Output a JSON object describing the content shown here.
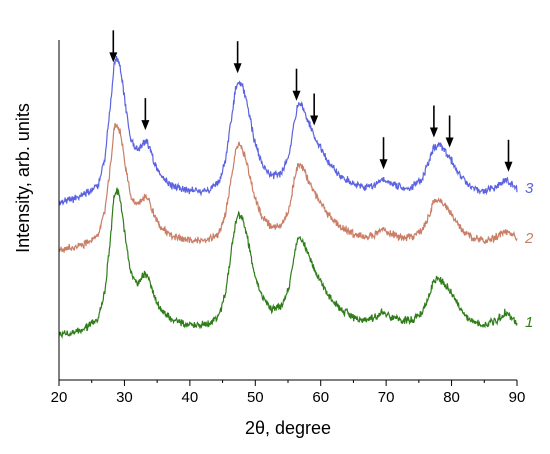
{
  "chart_data": {
    "type": "line",
    "title": "",
    "xlabel": "2θ, degree",
    "ylabel": "Intensity, arb. units",
    "xlim": [
      20,
      90
    ],
    "x_ticks": [
      20,
      30,
      40,
      50,
      60,
      70,
      80,
      90
    ],
    "y_ticks_shown": false,
    "grid": false,
    "legend": "none",
    "series": [
      {
        "name": "1",
        "color": "#2e7d18",
        "x": [
          20,
          22,
          24,
          26,
          27,
          28,
          28.4,
          28.8,
          29.4,
          30.2,
          31,
          32,
          32.6,
          33.2,
          33.8,
          34.6,
          35.6,
          37,
          39,
          41,
          43,
          44.5,
          45.5,
          46.3,
          47,
          47.4,
          48,
          48.8,
          49.8,
          51,
          52.5,
          54,
          55.2,
          56,
          56.5,
          57.2,
          58,
          59.2,
          61,
          63,
          65,
          67,
          68.5,
          69.5,
          70.5,
          72,
          74,
          75.5,
          76.5,
          77.2,
          78,
          79,
          80,
          81.5,
          83,
          85,
          87,
          88.2,
          89,
          90
        ],
        "y": [
          8,
          9,
          12,
          18,
          35,
          75,
          96,
          100,
          94,
          68,
          46,
          40,
          44,
          47,
          43,
          32,
          24,
          18,
          15,
          14,
          15,
          20,
          35,
          60,
          80,
          85,
          82,
          70,
          48,
          32,
          24,
          26,
          38,
          60,
          70,
          68,
          60,
          48,
          34,
          24,
          19,
          17,
          19,
          22,
          20,
          17,
          17,
          22,
          32,
          42,
          44,
          40,
          34,
          23,
          17,
          14,
          17,
          22,
          19,
          16
        ]
      },
      {
        "name": "2",
        "color": "#c97e66",
        "x": [
          20,
          22,
          24,
          26,
          27,
          28,
          28.4,
          28.8,
          29.4,
          30.2,
          31,
          32,
          32.6,
          33.2,
          33.8,
          34.6,
          35.6,
          37,
          39,
          41,
          43,
          44.5,
          45.5,
          46.3,
          47,
          47.4,
          48,
          48.8,
          49.8,
          51,
          52.5,
          54,
          55.2,
          56,
          56.5,
          57.2,
          58,
          59.2,
          61,
          63,
          65,
          67,
          68.5,
          69.5,
          70.5,
          72,
          74,
          75.5,
          76.5,
          77.2,
          78,
          79,
          80,
          81.5,
          83,
          85,
          87,
          88.2,
          89,
          90
        ],
        "y": [
          8,
          9,
          12,
          18,
          35,
          75,
          96,
          100,
          94,
          68,
          46,
          40,
          44,
          47,
          43,
          32,
          24,
          18,
          15,
          14,
          15,
          20,
          35,
          60,
          80,
          85,
          82,
          70,
          48,
          32,
          24,
          26,
          38,
          60,
          70,
          68,
          60,
          48,
          34,
          24,
          19,
          17,
          19,
          22,
          20,
          17,
          17,
          22,
          32,
          42,
          44,
          40,
          34,
          23,
          17,
          14,
          17,
          22,
          19,
          16
        ]
      },
      {
        "name": "3",
        "color": "#5b63e0",
        "x": [
          20,
          22,
          24,
          26,
          27,
          28,
          28.4,
          28.8,
          29.4,
          30.2,
          31,
          32,
          32.6,
          33.2,
          33.8,
          34.6,
          35.6,
          37,
          39,
          41,
          43,
          44.5,
          45.5,
          46.3,
          47,
          47.4,
          48,
          48.8,
          49.8,
          51,
          52.5,
          54,
          55.2,
          56,
          56.5,
          57.2,
          58,
          59.2,
          61,
          63,
          65,
          67,
          68.5,
          69.5,
          70.5,
          72,
          74,
          75.5,
          76.5,
          77.2,
          78,
          79,
          80,
          81.5,
          83,
          85,
          87,
          88.2,
          89,
          90
        ],
        "y": [
          8,
          9,
          12,
          18,
          35,
          75,
          96,
          100,
          94,
          68,
          46,
          40,
          44,
          47,
          43,
          32,
          24,
          18,
          15,
          14,
          15,
          20,
          35,
          60,
          80,
          85,
          82,
          70,
          48,
          32,
          24,
          26,
          38,
          60,
          70,
          68,
          60,
          48,
          34,
          24,
          19,
          17,
          19,
          22,
          20,
          17,
          17,
          22,
          32,
          42,
          44,
          40,
          34,
          23,
          17,
          14,
          17,
          22,
          19,
          16
        ]
      }
    ],
    "annotations": {
      "arrows_on_series": "3",
      "arrow_x": [
        28.3,
        33.2,
        47.3,
        56.3,
        59,
        69.6,
        77.3,
        79.7,
        88.7
      ]
    }
  }
}
